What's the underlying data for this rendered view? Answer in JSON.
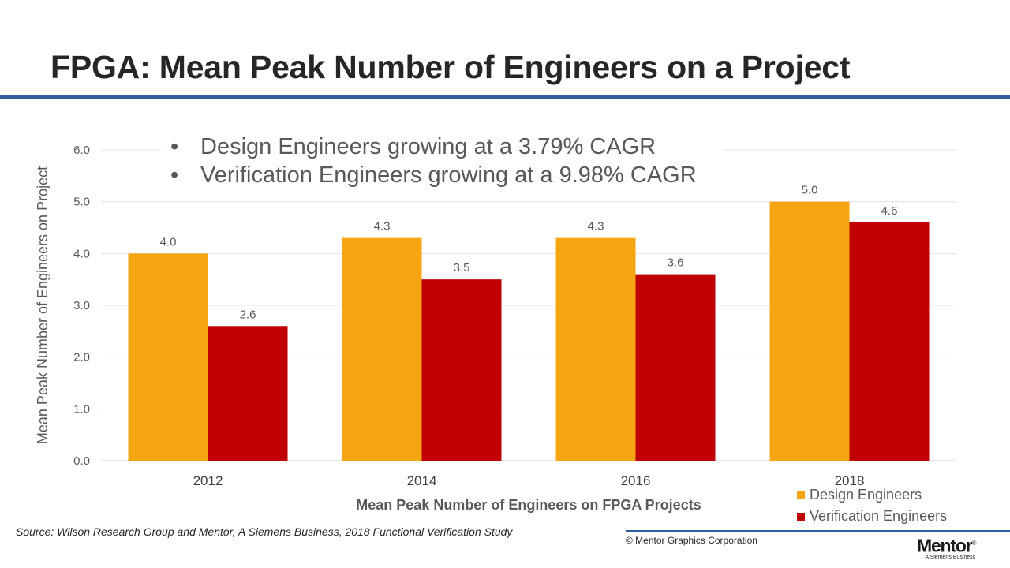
{
  "title": "FPGA: Mean Peak Number of Engineers on a Project",
  "colors": {
    "accent_rule": "#2f5f9e",
    "design": "#f5a511",
    "verification": "#c00000",
    "footer_rule": "#2f5f9e"
  },
  "bullets": [
    "Design Engineers growing at a 3.79% CAGR",
    "Verification Engineers growing at a 9.98% CAGR"
  ],
  "bullet_glyph": "•",
  "chart_data": {
    "type": "bar",
    "categories": [
      "2012",
      "2014",
      "2016",
      "2018"
    ],
    "series": [
      {
        "name": "Design Engineers",
        "values": [
          4.0,
          4.3,
          4.3,
          5.0
        ]
      },
      {
        "name": "Verification Engineers",
        "values": [
          2.6,
          3.5,
          3.6,
          4.6
        ]
      }
    ],
    "data_labels": [
      [
        "4.0",
        "4.3",
        "4.3",
        "5.0"
      ],
      [
        "2.6",
        "3.5",
        "3.6",
        "4.6"
      ]
    ],
    "xlabel": "Mean Peak Number of Engineers on FPGA Projects",
    "ylabel": "Mean Peak Number of Engineers on Project",
    "ylim": [
      0,
      6
    ],
    "yticks": [
      "0.0",
      "1.0",
      "2.0",
      "3.0",
      "4.0",
      "5.0",
      "6.0"
    ],
    "grid": true,
    "legend_position": "bottom-right"
  },
  "source": "Source:  Wilson Research Group and Mentor, A Siemens Business, 2018 Functional Verification Study",
  "copyright": "© Mentor Graphics Corporation",
  "logo": {
    "word": "Mentor",
    "registered": "®",
    "tagline": "A Siemens Business"
  }
}
